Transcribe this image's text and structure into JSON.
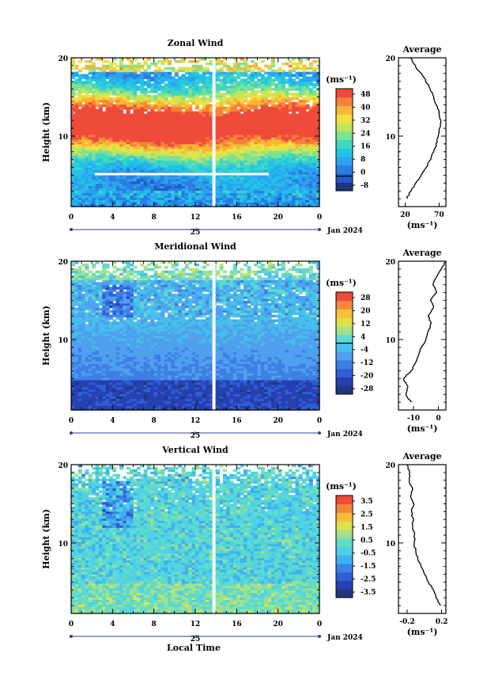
{
  "figure": {
    "xlabel": "Local Time",
    "date_label": "Jan 2024",
    "day_label": "25"
  },
  "colors": {
    "zonal": [
      "#23367a",
      "#1f5bc9",
      "#2b7de2",
      "#2ba3ef",
      "#23c3e6",
      "#3fd6c2",
      "#7ee092",
      "#c3e65c",
      "#f2e03e",
      "#f7b637",
      "#f7823a",
      "#ef4a3a"
    ],
    "meridional": [
      "#23367a",
      "#2740b0",
      "#2f5ed6",
      "#3f7fe4",
      "#4fa0ee",
      "#46c0ea",
      "#60d8d2",
      "#a4e28a",
      "#e0e04a",
      "#f6c038",
      "#f48a39",
      "#ef4a3a"
    ],
    "vertical": [
      "#23367a",
      "#2740b0",
      "#2f5ed6",
      "#3a84e4",
      "#3fb1ef",
      "#4fd0e8",
      "#62dcc6",
      "#9ee28e",
      "#dde24c",
      "#f6bd38",
      "#f48739",
      "#ef4a3a"
    ]
  },
  "chart_data": [
    {
      "type": "heatmap",
      "title": "Zonal Wind",
      "ylabel": "Height (km)",
      "xlabel": "",
      "xlim": [
        0,
        24
      ],
      "ylim": [
        1,
        20
      ],
      "xticks": [
        "0",
        "4",
        "8",
        "12",
        "16",
        "20",
        "0"
      ],
      "yticks": [
        "10",
        "20"
      ],
      "unit_label": "(ms⁻¹)",
      "colorbar_min": -8,
      "colorbar_max": 48,
      "colorbar_ticks": [
        "48",
        "40",
        "32",
        "24",
        "16",
        "8",
        "0",
        "-8"
      ],
      "contour_level": 0,
      "missing_time": 13.8,
      "profile": {
        "title": "Average",
        "xticks": [
          "20",
          "70"
        ],
        "xlim": [
          10,
          80
        ],
        "xlabel": "(ms⁻¹)",
        "yticks": [
          "10",
          "20"
        ],
        "heights": [
          2,
          3,
          4,
          5,
          6,
          7,
          8,
          9,
          10,
          11,
          12,
          13,
          14,
          15,
          16,
          17,
          18,
          19,
          20
        ],
        "values": [
          22,
          28,
          36,
          44,
          51,
          57,
          62,
          66,
          69,
          71,
          72,
          70,
          66,
          62,
          57,
          51,
          43,
          34,
          28
        ]
      }
    },
    {
      "type": "heatmap",
      "title": "Meridional Wind",
      "ylabel": "Height (km)",
      "xlabel": "",
      "xlim": [
        0,
        24
      ],
      "ylim": [
        1,
        20
      ],
      "xticks": [
        "0",
        "4",
        "8",
        "12",
        "16",
        "20",
        "0"
      ],
      "yticks": [
        "10",
        "20"
      ],
      "unit_label": "(ms⁻¹)",
      "colorbar_min": -28,
      "colorbar_max": 28,
      "colorbar_ticks": [
        "28",
        "20",
        "12",
        "4",
        "-4",
        "-12",
        "-20",
        "-28"
      ],
      "contour_level": 0,
      "missing_time": 13.8,
      "profile": {
        "title": "Average",
        "xticks": [
          "-10",
          "0"
        ],
        "xlim": [
          -16,
          3
        ],
        "xlabel": "(ms⁻¹)",
        "yticks": [
          "10",
          "20"
        ],
        "heights": [
          2,
          3,
          4,
          5,
          6,
          7,
          8,
          9,
          10,
          11,
          12,
          13,
          14,
          15,
          16,
          17,
          18,
          19,
          20
        ],
        "values": [
          -11,
          -13,
          -12,
          -14,
          -11,
          -9,
          -8,
          -7,
          -5,
          -4,
          -3,
          -4,
          -2,
          -3,
          -1,
          -2,
          -1,
          1,
          3
        ]
      }
    },
    {
      "type": "heatmap",
      "title": "Vertical Wind",
      "ylabel": "Height (km)",
      "xlabel": "Local Time",
      "xlim": [
        0,
        24
      ],
      "ylim": [
        1,
        20
      ],
      "xticks": [
        "0",
        "4",
        "8",
        "12",
        "16",
        "20",
        "0"
      ],
      "yticks": [
        "10",
        "20"
      ],
      "unit_label": "(ms⁻¹)",
      "colorbar_min": -3.5,
      "colorbar_max": 3.5,
      "colorbar_ticks": [
        "3.5",
        "2.5",
        "1.5",
        "0.5",
        "-0.5",
        "-1.5",
        "-2.5",
        "-3.5"
      ],
      "contour_level": null,
      "missing_time": 13.8,
      "profile": {
        "title": "Average",
        "xticks": [
          "-0.2",
          "0.2"
        ],
        "xlim": [
          -0.3,
          0.25
        ],
        "xlabel": "(ms⁻¹)",
        "yticks": [
          "10",
          "20"
        ],
        "heights": [
          2,
          3,
          4,
          5,
          6,
          7,
          8,
          9,
          10,
          11,
          12,
          13,
          14,
          15,
          16,
          17,
          18,
          19,
          20
        ],
        "values": [
          0.18,
          0.14,
          0.1,
          0.05,
          0.0,
          -0.04,
          -0.08,
          -0.1,
          -0.12,
          -0.11,
          -0.14,
          -0.13,
          -0.15,
          -0.12,
          -0.16,
          -0.14,
          -0.18,
          -0.17,
          -0.2
        ]
      }
    }
  ]
}
